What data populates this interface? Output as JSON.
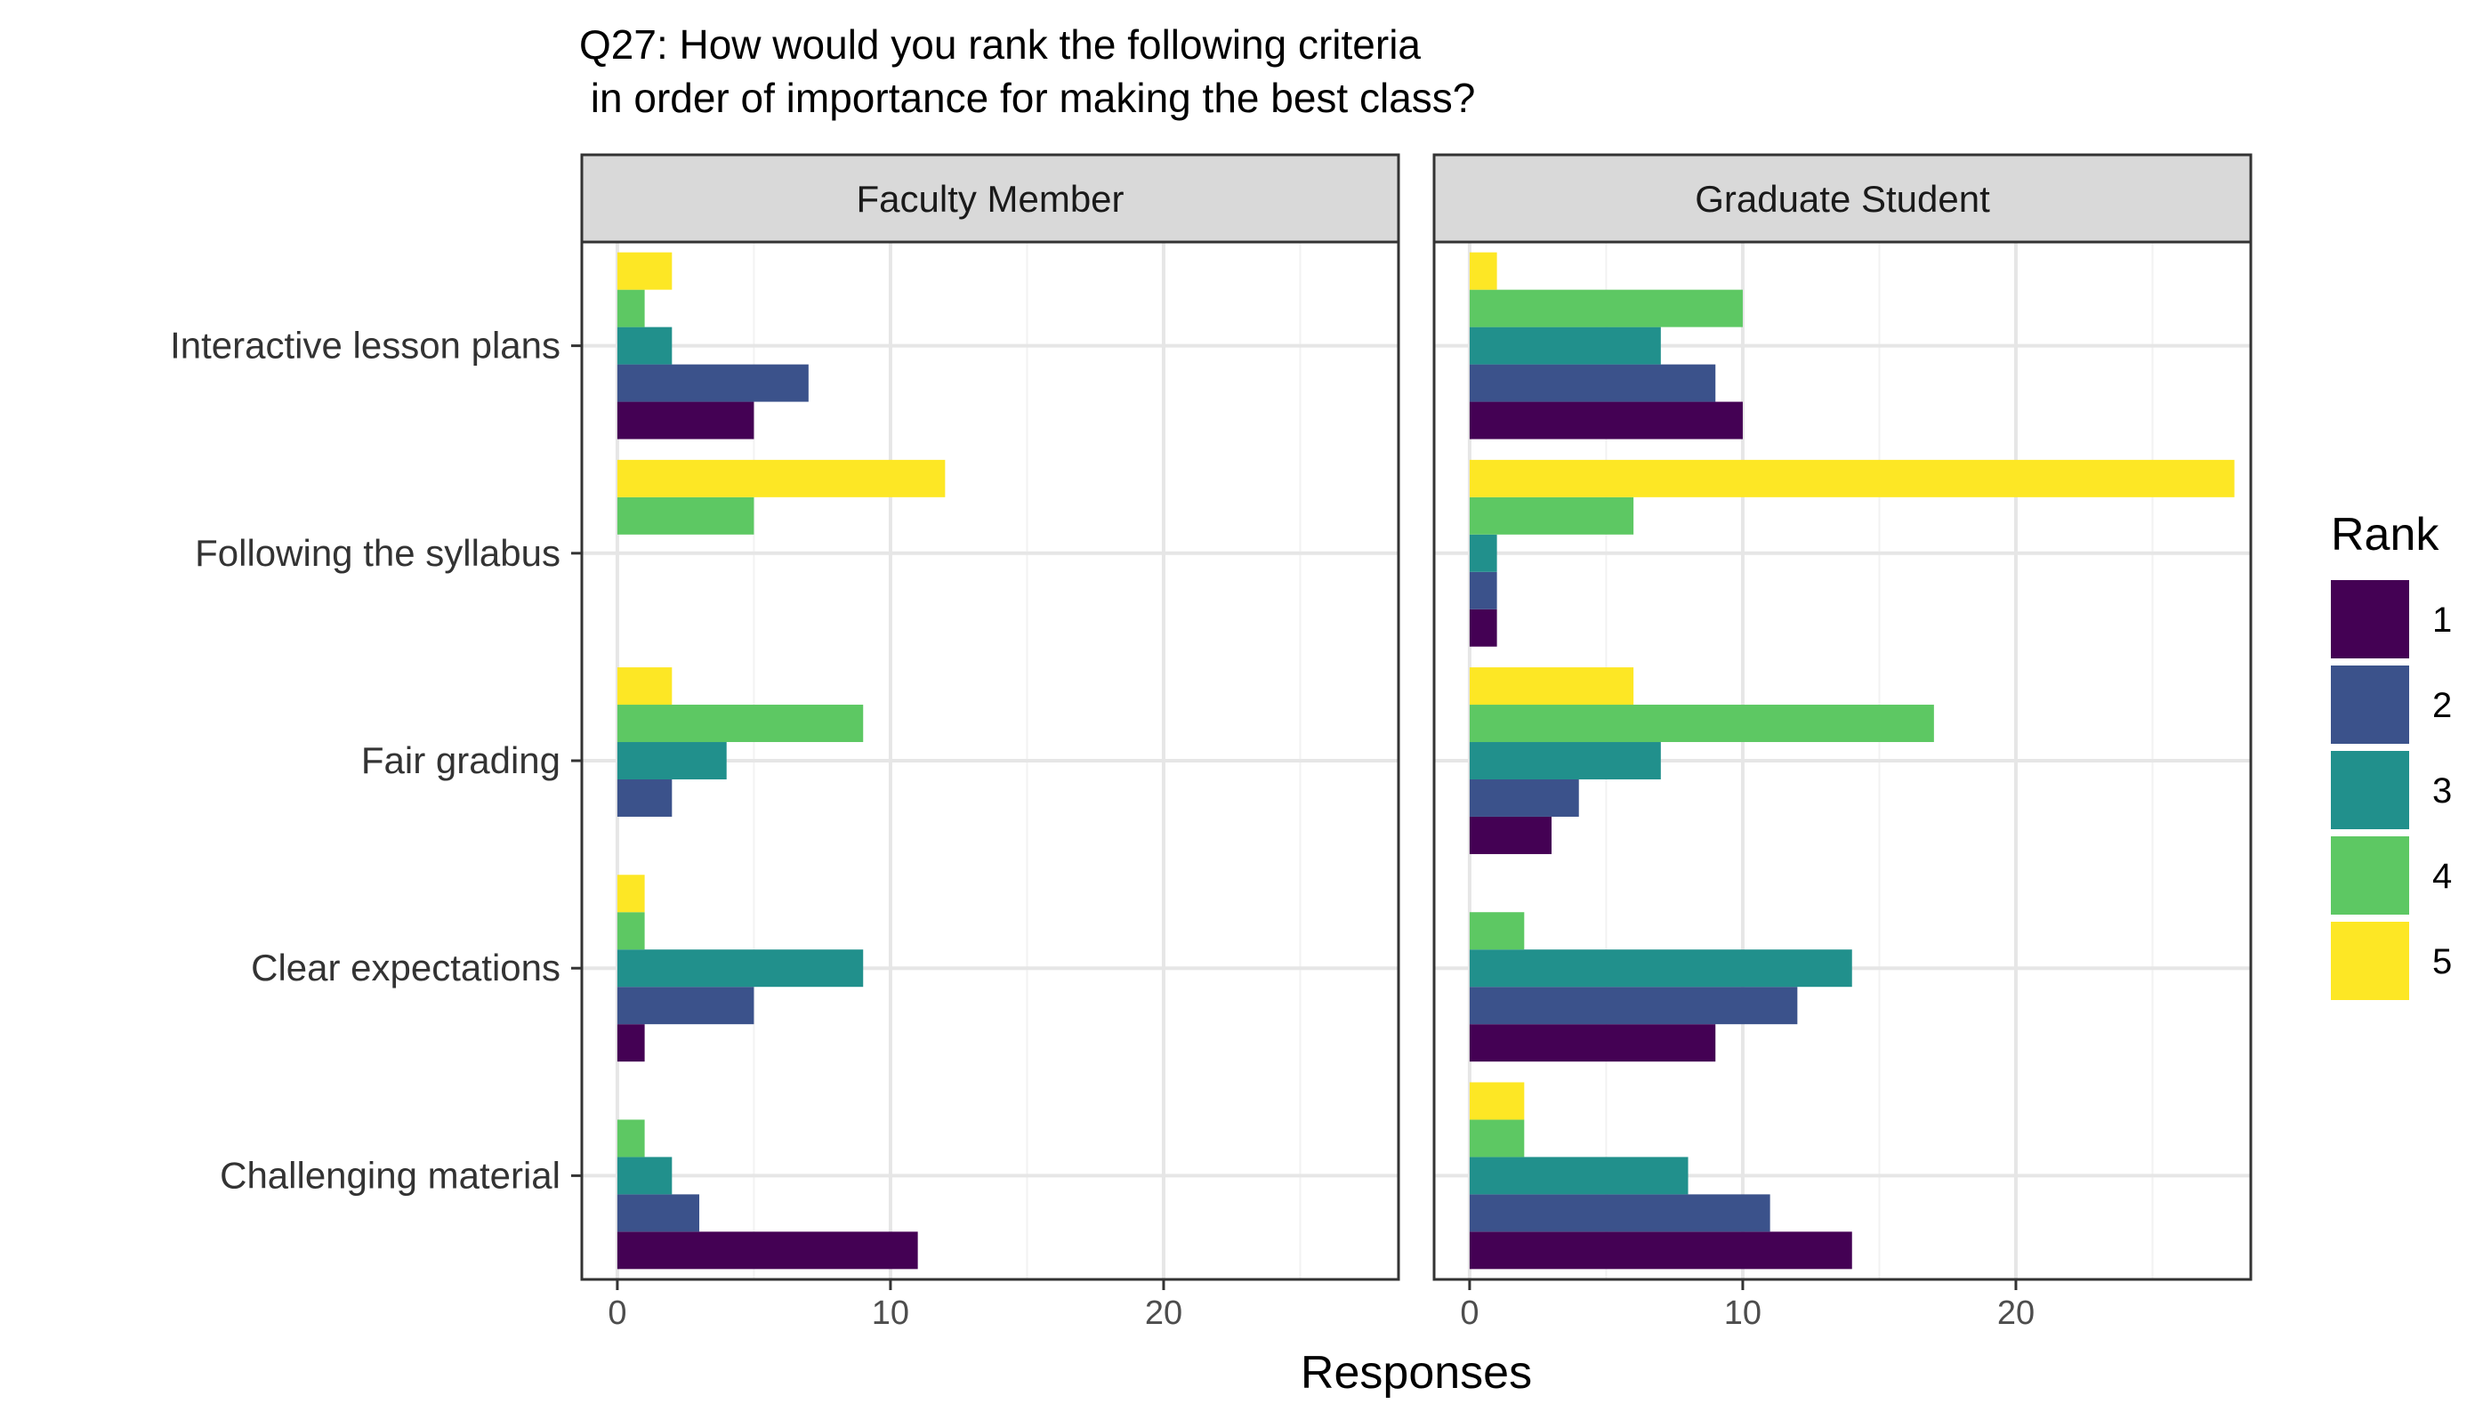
{
  "chart_data": {
    "type": "bar",
    "orientation": "horizontal",
    "title_lines": [
      "Q27: How would you rank the following criteria",
      " in order of importance for making the best class?"
    ],
    "xlabel": "Responses",
    "ylabel": "",
    "xlim": [
      -1.3,
      28.6
    ],
    "xticks": [
      0,
      10,
      20
    ],
    "grid": true,
    "categories": [
      "Interactive lesson plans",
      "Following the syllabus",
      "Fair grading",
      "Clear expectations",
      "Challenging material"
    ],
    "legend": {
      "title": "Rank",
      "position": "right",
      "entries": [
        {
          "label": "1",
          "color": "#440154"
        },
        {
          "label": "2",
          "color": "#3B528B"
        },
        {
          "label": "3",
          "color": "#21908C"
        },
        {
          "label": "4",
          "color": "#5DC863"
        },
        {
          "label": "5",
          "color": "#FDE725"
        }
      ]
    },
    "panels": [
      {
        "name": "Faculty Member",
        "series": [
          {
            "name": "1",
            "values": [
              5,
              0,
              0,
              1,
              11
            ]
          },
          {
            "name": "2",
            "values": [
              7,
              0,
              2,
              5,
              3
            ]
          },
          {
            "name": "3",
            "values": [
              2,
              0,
              4,
              9,
              2
            ]
          },
          {
            "name": "4",
            "values": [
              1,
              5,
              9,
              1,
              1
            ]
          },
          {
            "name": "5",
            "values": [
              2,
              12,
              2,
              1,
              0
            ]
          }
        ]
      },
      {
        "name": "Graduate Student",
        "series": [
          {
            "name": "1",
            "values": [
              10,
              1,
              3,
              9,
              14
            ]
          },
          {
            "name": "2",
            "values": [
              9,
              1,
              4,
              12,
              11
            ]
          },
          {
            "name": "3",
            "values": [
              7,
              1,
              7,
              14,
              8
            ]
          },
          {
            "name": "4",
            "values": [
              10,
              6,
              17,
              2,
              2
            ]
          },
          {
            "name": "5",
            "values": [
              1,
              28,
              6,
              0,
              2
            ]
          }
        ]
      }
    ]
  }
}
